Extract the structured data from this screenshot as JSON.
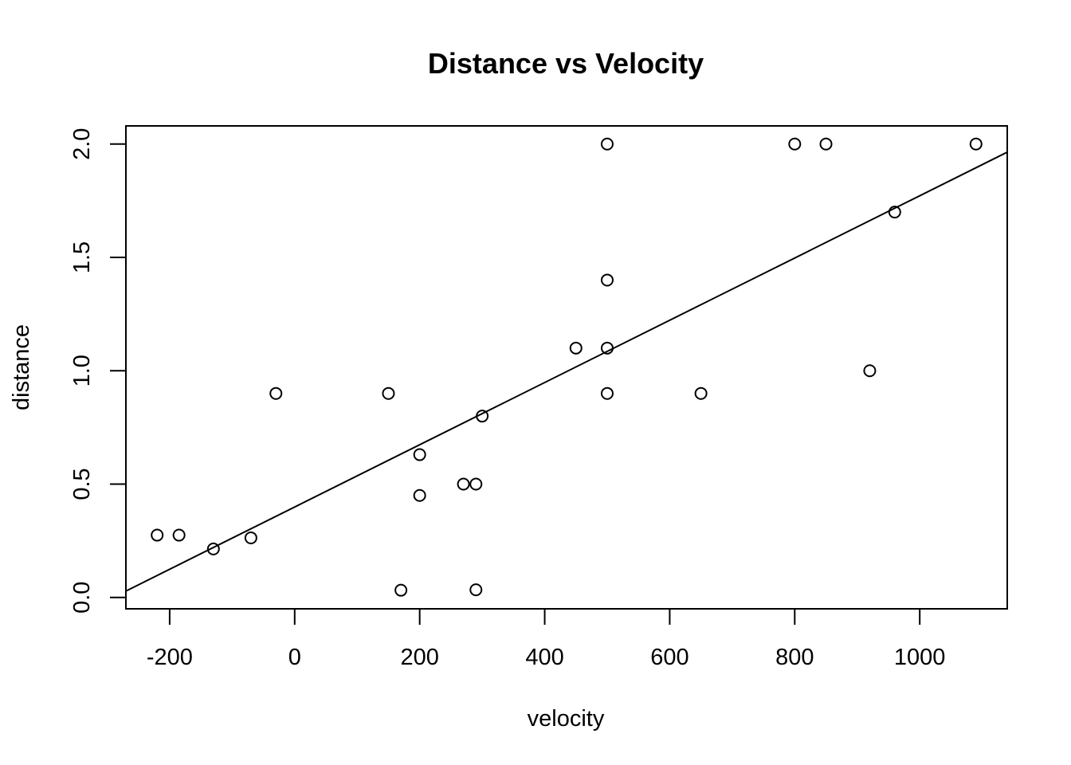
{
  "chart_data": {
    "type": "scatter",
    "title": "Distance vs Velocity",
    "xlabel": "velocity",
    "ylabel": "distance",
    "xlim": [
      -270,
      1140
    ],
    "ylim": [
      -0.05,
      2.08
    ],
    "x_ticks": [
      -200,
      0,
      200,
      400,
      600,
      800,
      1000
    ],
    "x_tick_labels": [
      "-200",
      "0",
      "200",
      "400",
      "600",
      "800",
      "1000"
    ],
    "y_ticks": [
      0.0,
      0.5,
      1.0,
      1.5,
      2.0
    ],
    "y_tick_labels": [
      "0.0",
      "0.5",
      "1.0",
      "1.5",
      "2.0"
    ],
    "grid": false,
    "marker": "open-circle",
    "series": [
      {
        "points": [
          {
            "x": 170,
            "y": 0.032
          },
          {
            "x": 290,
            "y": 0.034
          },
          {
            "x": -130,
            "y": 0.214
          },
          {
            "x": -70,
            "y": 0.263
          },
          {
            "x": -185,
            "y": 0.275
          },
          {
            "x": -220,
            "y": 0.275
          },
          {
            "x": 200,
            "y": 0.45
          },
          {
            "x": 290,
            "y": 0.5
          },
          {
            "x": 270,
            "y": 0.5
          },
          {
            "x": 200,
            "y": 0.63
          },
          {
            "x": 300,
            "y": 0.8
          },
          {
            "x": -30,
            "y": 0.9
          },
          {
            "x": 650,
            "y": 0.9
          },
          {
            "x": 150,
            "y": 0.9
          },
          {
            "x": 500,
            "y": 0.9
          },
          {
            "x": 920,
            "y": 1.0
          },
          {
            "x": 450,
            "y": 1.1
          },
          {
            "x": 500,
            "y": 1.1
          },
          {
            "x": 500,
            "y": 1.4
          },
          {
            "x": 960,
            "y": 1.7
          },
          {
            "x": 500,
            "y": 2.0
          },
          {
            "x": 850,
            "y": 2.0
          },
          {
            "x": 800,
            "y": 2.0
          },
          {
            "x": 1090,
            "y": 2.0
          }
        ]
      }
    ],
    "fit_line": {
      "type": "linear",
      "intercept": 0.399,
      "slope": 0.001373
    }
  }
}
